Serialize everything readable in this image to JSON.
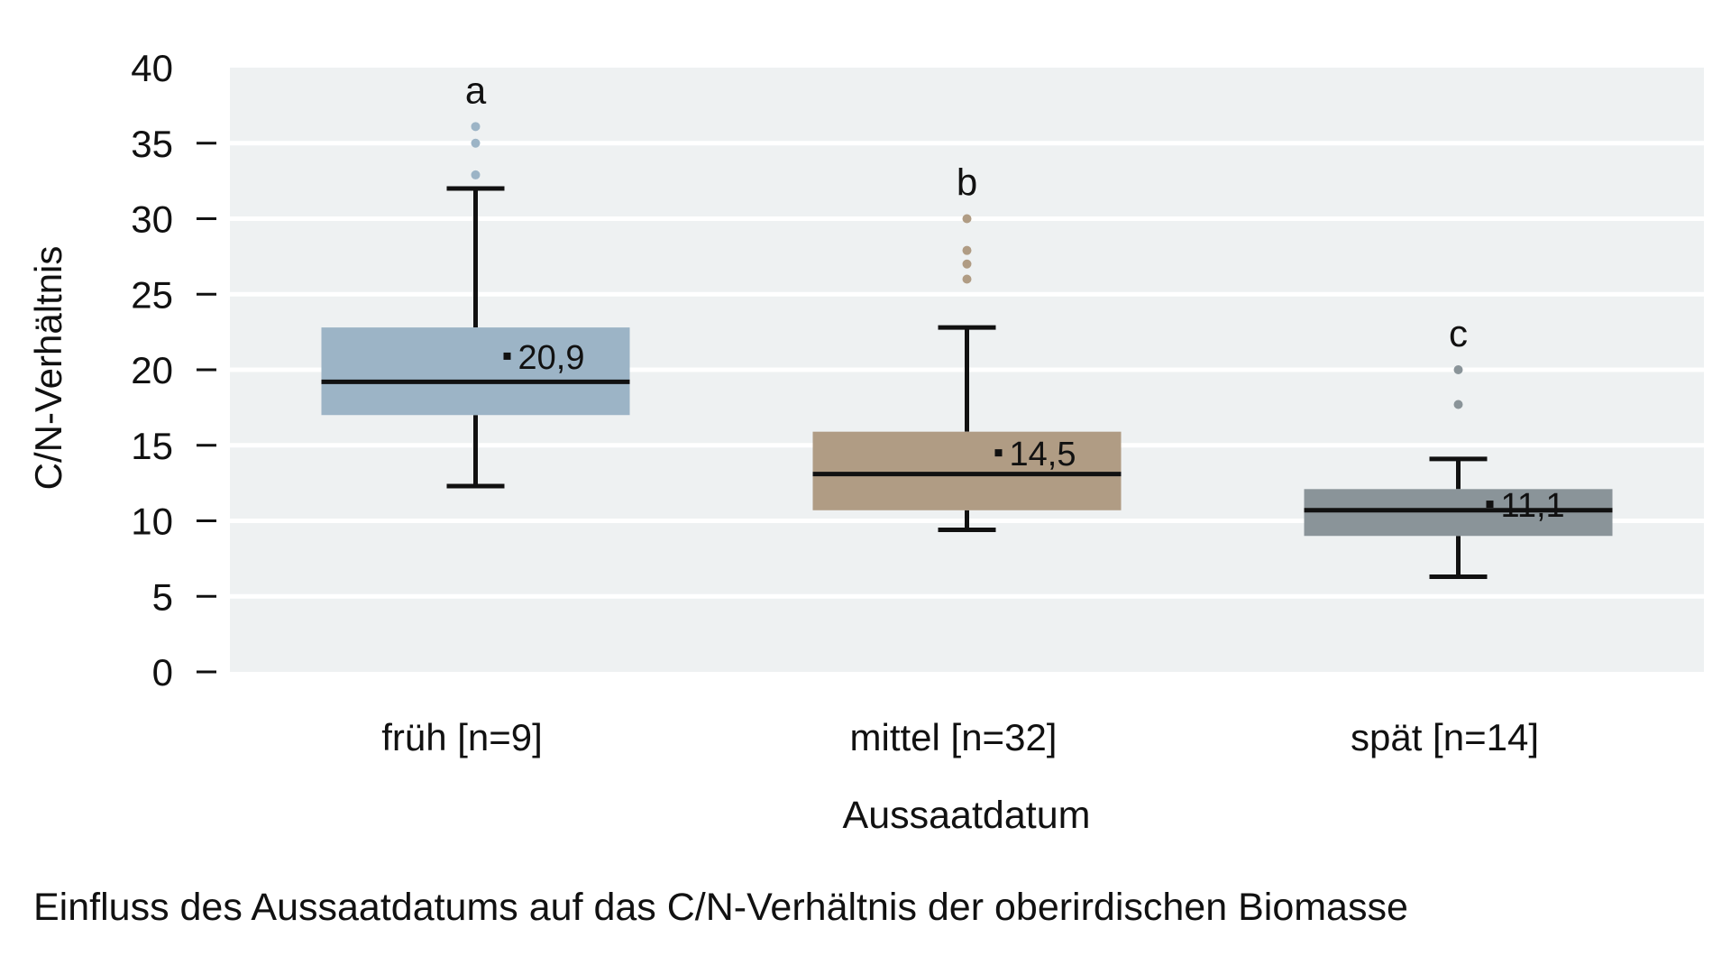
{
  "caption": "Einfluss des Aussaatdatums auf das C/N-Verhältnis der oberirdischen Biomasse",
  "chart_data": {
    "type": "boxplot",
    "title": "",
    "xlabel": "Aussaatdatum",
    "ylabel": "C/N-Verhältnis",
    "ylim": [
      0,
      40
    ],
    "yticks": [
      0,
      5,
      10,
      15,
      20,
      25,
      30,
      35,
      40
    ],
    "grid": "horizontal",
    "plot_background": "#eef1f2",
    "grid_color": "#ffffff",
    "categories": [
      "früh [n=9]",
      "mittel [n=32]",
      "spät [n=14]"
    ],
    "boxes": [
      {
        "category": "früh [n=9]",
        "whisker_low": 12.3,
        "q1": 17.0,
        "median": 19.2,
        "q3": 22.8,
        "whisker_high": 32.0,
        "mean": 20.9,
        "mean_label": "20,9",
        "outliers": [
          32.9,
          35.0,
          36.1
        ],
        "letter": "a",
        "color": "#9cb4c6"
      },
      {
        "category": "mittel [n=32]",
        "whisker_low": 9.4,
        "q1": 10.7,
        "median": 13.1,
        "q3": 15.9,
        "whisker_high": 22.8,
        "mean": 14.5,
        "mean_label": "14,5",
        "outliers": [
          26.0,
          27.0,
          27.9,
          30.0
        ],
        "letter": "b",
        "color": "#b09c84"
      },
      {
        "category": "spät [n=14]",
        "whisker_low": 6.3,
        "q1": 9.0,
        "median": 10.7,
        "q3": 12.1,
        "whisker_high": 14.1,
        "mean": 11.1,
        "mean_label": "11,1",
        "outliers": [
          17.7,
          20.0
        ],
        "letter": "c",
        "color": "#8a9499"
      }
    ]
  }
}
